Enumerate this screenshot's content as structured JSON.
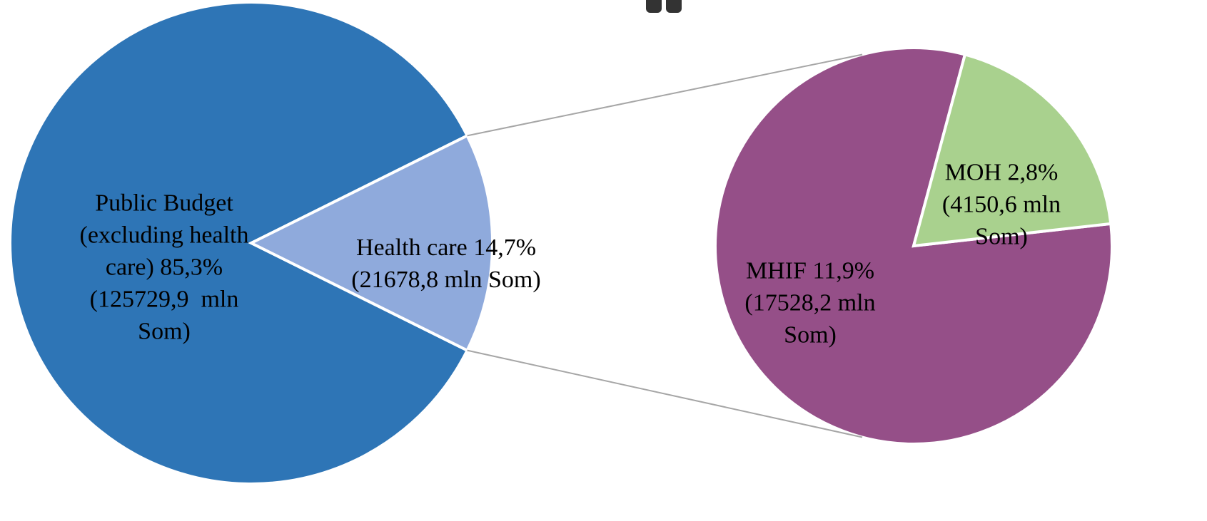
{
  "chart_data": {
    "type": "pie-of-pie",
    "categories": [
      "Public Budget (excluding health care)",
      "Health care"
    ],
    "values": [
      85.3,
      14.7
    ],
    "value_labels": [
      "85,3% (125729,9  mln Som)",
      "14,7% (21678,8 mln Som)"
    ],
    "colors": [
      "#2e75b6",
      "#8faadc"
    ],
    "secondary": {
      "categories": [
        "MHIF",
        "MOH"
      ],
      "values": [
        11.9,
        2.8
      ],
      "value_labels": [
        "11,9% (17528,2 mln Som)",
        "2,8% (4150,6 mln Som)"
      ],
      "colors": [
        "#954f88",
        "#a9d18e"
      ]
    }
  }
}
